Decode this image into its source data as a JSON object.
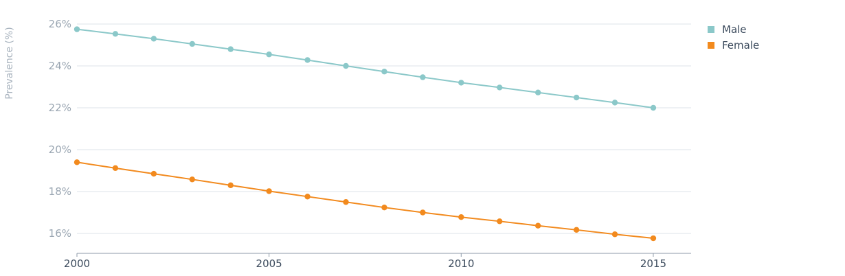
{
  "chart_data": {
    "type": "line",
    "xlabel": "",
    "ylabel": "Prevalence (%)",
    "xlim": [
      2000,
      2016
    ],
    "ylim": [
      15,
      26.2
    ],
    "x": [
      2000,
      2001,
      2002,
      2003,
      2004,
      2005,
      2006,
      2007,
      2008,
      2009,
      2010,
      2011,
      2012,
      2013,
      2014,
      2015
    ],
    "x_ticks": [
      2000,
      2005,
      2010,
      2015
    ],
    "y_ticks": [
      16,
      18,
      20,
      22,
      24,
      26
    ],
    "y_tick_format": "%",
    "grid": true,
    "legend": "right",
    "series": [
      {
        "name": "Male",
        "color": "#8bc8c9",
        "values": [
          25.75,
          25.53,
          25.3,
          25.05,
          24.8,
          24.55,
          24.28,
          24.0,
          23.73,
          23.46,
          23.2,
          22.97,
          22.73,
          22.49,
          22.25,
          22.0
        ]
      },
      {
        "name": "Female",
        "color": "#f28a1e",
        "values": [
          19.4,
          19.12,
          18.85,
          18.58,
          18.3,
          18.02,
          17.76,
          17.5,
          17.24,
          17.0,
          16.78,
          16.58,
          16.37,
          16.17,
          15.96,
          15.77
        ]
      }
    ]
  }
}
